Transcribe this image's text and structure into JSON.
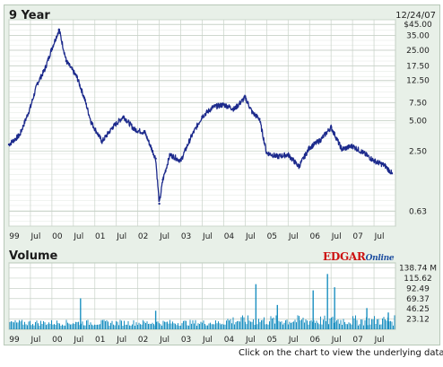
{
  "footer_note": "Click on the chart to view the underlying data.",
  "colors": {
    "background": "#e8f0e8",
    "plot": "#ffffff",
    "grid": "#c8d2c8",
    "price_line": "#1c2a8c",
    "volume_bar": "#1a8fc0",
    "logo_red": "#cc1111",
    "logo_blue": "#1f4fa0"
  },
  "logo": {
    "main": "EDGAR",
    "sub": "Online"
  },
  "chart_data": [
    {
      "type": "line",
      "title": "9 Year",
      "date_label": "12/24/07",
      "scale": "log",
      "ylim": [
        0.45,
        50
      ],
      "y_tick_labels": [
        "$45.00",
        "35.00",
        "25.00",
        "17.50",
        "12.50",
        "7.50",
        "5.00",
        "2.50",
        "0.63"
      ],
      "y_tick_values": [
        45,
        35,
        25,
        17.5,
        12.5,
        7.5,
        5,
        2.5,
        0.63
      ],
      "x_tick_labels": [
        "99",
        "Jul",
        "00",
        "Jul",
        "01",
        "Jul",
        "02",
        "Jul",
        "03",
        "Jul",
        "04",
        "Jul",
        "05",
        "Jul",
        "06",
        "Jul",
        "07",
        "Jul"
      ],
      "grid": true,
      "series": [
        {
          "x": [
            "1999-01",
            "1999-04",
            "1999-07",
            "1999-09",
            "1999-11",
            "2000-01",
            "2000-03",
            "2000-05",
            "2000-08",
            "2000-10",
            "2000-12",
            "2001-03",
            "2001-06",
            "2001-09",
            "2001-12",
            "2002-03",
            "2002-06",
            "2002-07",
            "2002-08",
            "2002-10",
            "2003-01",
            "2003-04",
            "2003-07",
            "2003-10",
            "2004-01",
            "2004-04",
            "2004-07",
            "2004-09",
            "2004-11",
            "2005-01",
            "2005-04",
            "2005-07",
            "2005-10",
            "2006-01",
            "2006-04",
            "2006-07",
            "2006-10",
            "2007-01",
            "2007-04",
            "2007-07",
            "2007-10",
            "2007-12"
          ],
          "y": [
            2.9,
            3.6,
            6.8,
            11.8,
            16.0,
            26.0,
            40.0,
            19.5,
            13.5,
            8.5,
            4.8,
            3.1,
            4.3,
            5.5,
            4.1,
            3.8,
            2.1,
            0.75,
            1.3,
            2.3,
            2.0,
            3.5,
            5.5,
            6.8,
            7.2,
            6.5,
            8.5,
            6.0,
            5.2,
            2.4,
            2.2,
            2.3,
            1.75,
            2.7,
            3.2,
            4.3,
            2.6,
            2.8,
            2.4,
            2.0,
            1.8,
            1.5
          ]
        }
      ]
    },
    {
      "type": "bar",
      "title": "Volume",
      "unit": "M",
      "ylim": [
        0,
        150
      ],
      "y_tick_labels": [
        "138.74 M",
        "115.62",
        "92.49",
        "69.37",
        "46.25",
        "23.12"
      ],
      "y_tick_values": [
        138.74,
        115.62,
        92.49,
        69.37,
        46.25,
        23.12
      ],
      "x_tick_labels": [
        "99",
        "Jul",
        "00",
        "Jul",
        "01",
        "Jul",
        "02",
        "Jul",
        "03",
        "Jul",
        "04",
        "Jul",
        "05",
        "Jul",
        "06",
        "Jul",
        "07",
        "Jul"
      ],
      "baseline_range": [
        8,
        25
      ],
      "spikes": [
        {
          "x": "2000-09",
          "value": 70
        },
        {
          "x": "2002-06",
          "value": 42
        },
        {
          "x": "2004-10",
          "value": 102
        },
        {
          "x": "2005-04",
          "value": 55
        },
        {
          "x": "2006-02",
          "value": 88
        },
        {
          "x": "2006-06",
          "value": 125
        },
        {
          "x": "2006-08",
          "value": 95
        },
        {
          "x": "2007-05",
          "value": 48
        },
        {
          "x": "2007-11",
          "value": 38
        }
      ]
    }
  ]
}
